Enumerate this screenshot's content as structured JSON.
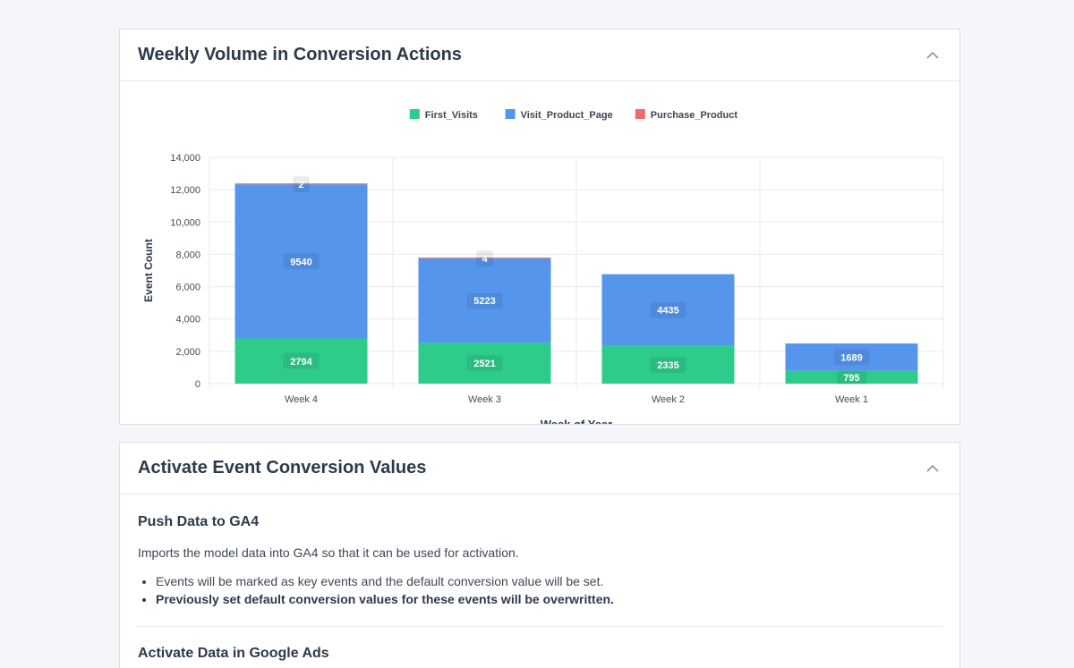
{
  "card1": {
    "title": "Weekly Volume in Conversion Actions"
  },
  "card2": {
    "title": "Activate Event Conversion Values",
    "section1_title": "Push Data to GA4",
    "description": "Imports the model data into GA4 so that it can be used for activation.",
    "bullets": [
      "Events will be marked as key events and the default conversion value will be set.",
      "Previously set default conversion values for these events will be overwritten."
    ],
    "section2_title": "Activate Data in Google Ads"
  },
  "colors": {
    "first_visits": "#2ecc8a",
    "visit_product_page": "#5596ec",
    "purchase_product": "#ef6c6c"
  },
  "chart_data": {
    "type": "bar",
    "stacked": true,
    "categories": [
      "Week 4",
      "Week 3",
      "Week 2",
      "Week 1"
    ],
    "series": [
      {
        "name": "First_Visits",
        "values": [
          2794,
          2521,
          2335,
          795
        ]
      },
      {
        "name": "Visit_Product_Page",
        "values": [
          9540,
          5223,
          4435,
          1689
        ]
      },
      {
        "name": "Purchase_Product",
        "values": [
          2,
          4,
          0,
          0
        ]
      }
    ],
    "xlabel": "Week of Year",
    "ylabel": "Event Count",
    "ylim": [
      0,
      14000
    ],
    "yticks": [
      "0",
      "2,000",
      "4,000",
      "6,000",
      "8,000",
      "10,000",
      "12,000",
      "14,000"
    ],
    "legend_position": "top",
    "grid": true
  }
}
